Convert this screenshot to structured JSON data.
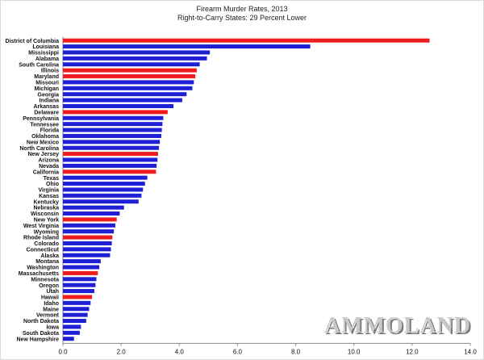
{
  "chart_data": {
    "type": "bar",
    "orientation": "horizontal",
    "title": "Firearm Murder Rates, 2013",
    "subtitle": "Right-to-Carry States: 29 Percent Lower",
    "xlabel": "",
    "ylabel": "",
    "xlim": [
      0,
      14
    ],
    "xticks": [
      "0.0",
      "2.0",
      "4.0",
      "6.0",
      "8.0",
      "10.0",
      "12.0",
      "14.0"
    ],
    "grid": false,
    "legend": "none",
    "colors": {
      "right_to_carry": "#1f1fd6",
      "non_right_to_carry": "#ee1c1c"
    },
    "categories": [
      "District of Columbia",
      "Louisiana",
      "Mississippi",
      "Alabama",
      "South Carolina",
      "Illinois",
      "Maryland",
      "Missouri",
      "Michigan",
      "Georgia",
      "Indiana",
      "Arkansas",
      "Delaware",
      "Pennsylvania",
      "Tennessee",
      "Florida",
      "Oklahoma",
      "New Mexico",
      "North Carolina",
      "New Jersey",
      "Arizona",
      "Nevada",
      "California",
      "Texas",
      "Ohio",
      "Virginia",
      "Kansas",
      "Kentucky",
      "Nebraska",
      "Wisconsin",
      "New York",
      "West Virginia",
      "Wyoming",
      "Rhode Island",
      "Colorado",
      "Connecticut",
      "Alaska",
      "Montana",
      "Washington",
      "Massachusetts",
      "Minnesota",
      "Oregon",
      "Utah",
      "Hawaii",
      "Idaho",
      "Maine",
      "Vermont",
      "North Dakota",
      "Iowa",
      "South Dakota",
      "New Hampshire"
    ],
    "values": [
      12.6,
      8.5,
      5.05,
      4.95,
      4.7,
      4.6,
      4.55,
      4.5,
      4.45,
      4.25,
      4.1,
      3.8,
      3.6,
      3.45,
      3.42,
      3.4,
      3.38,
      3.33,
      3.3,
      3.27,
      3.25,
      3.22,
      3.2,
      2.9,
      2.82,
      2.75,
      2.7,
      2.6,
      2.1,
      1.95,
      1.85,
      1.8,
      1.75,
      1.7,
      1.68,
      1.65,
      1.62,
      1.3,
      1.25,
      1.2,
      1.15,
      1.12,
      1.08,
      1.0,
      0.95,
      0.9,
      0.85,
      0.8,
      0.62,
      0.58,
      0.38
    ],
    "right_to_carry": [
      false,
      true,
      true,
      true,
      true,
      false,
      false,
      true,
      true,
      true,
      true,
      true,
      false,
      true,
      true,
      true,
      true,
      true,
      true,
      false,
      true,
      true,
      false,
      true,
      true,
      true,
      true,
      true,
      true,
      true,
      false,
      true,
      true,
      false,
      true,
      true,
      true,
      true,
      true,
      false,
      true,
      true,
      true,
      false,
      true,
      true,
      true,
      true,
      true,
      true,
      true
    ]
  },
  "watermark": "AMMOLAND"
}
